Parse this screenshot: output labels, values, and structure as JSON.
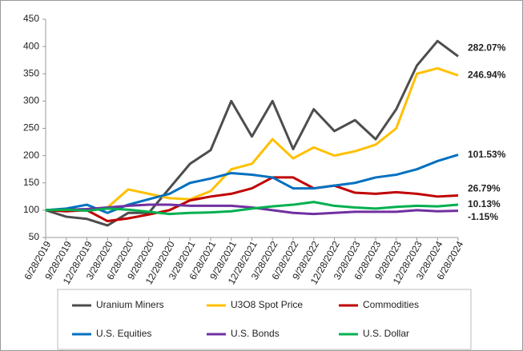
{
  "chart_data": {
    "type": "line",
    "categories": [
      "6/28/2019",
      "9/28/2019",
      "12/28/2019",
      "3/28/2020",
      "6/28/2020",
      "9/28/2020",
      "12/28/2020",
      "3/28/2021",
      "6/28/2021",
      "9/28/2021",
      "12/28/2021",
      "3/28/2022",
      "6/28/2022",
      "9/28/2022",
      "12/28/2022",
      "3/28/2023",
      "6/28/2023",
      "9/28/2023",
      "12/28/2023",
      "3/28/2024",
      "6/28/2024"
    ],
    "ylim": [
      50,
      450
    ],
    "yticks": [
      50,
      100,
      150,
      200,
      250,
      300,
      350,
      400,
      450
    ],
    "series": [
      {
        "name": "Uranium Miners",
        "color": "#4d4d4d",
        "end_label": "282.07%",
        "values": [
          100,
          88,
          84,
          72,
          95,
          95,
          140,
          185,
          210,
          300,
          235,
          300,
          212,
          285,
          245,
          265,
          230,
          285,
          365,
          410,
          382
        ]
      },
      {
        "name": "U3O8 Spot Price",
        "color": "#ffc000",
        "end_label": "246.94%",
        "values": [
          100,
          102,
          100,
          105,
          138,
          130,
          122,
          120,
          135,
          175,
          185,
          230,
          195,
          215,
          200,
          208,
          220,
          250,
          350,
          360,
          347
        ]
      },
      {
        "name": "Commodities",
        "color": "#c00000",
        "end_label": "26.79%",
        "values": [
          100,
          98,
          100,
          80,
          85,
          92,
          100,
          118,
          125,
          130,
          140,
          160,
          160,
          140,
          145,
          132,
          130,
          133,
          130,
          125,
          127
        ]
      },
      {
        "name": "U.S. Equities",
        "color": "#0070c0",
        "end_label": "101.53%",
        "values": [
          100,
          103,
          110,
          95,
          110,
          120,
          130,
          150,
          158,
          168,
          165,
          160,
          140,
          140,
          145,
          150,
          160,
          165,
          175,
          190,
          201.5
        ]
      },
      {
        "name": "U.S. Bonds",
        "color": "#7030a0",
        "end_label": "-1.15%",
        "values": [
          100,
          101,
          102,
          105,
          108,
          110,
          110,
          108,
          108,
          108,
          105,
          100,
          95,
          93,
          95,
          97,
          97,
          97,
          100,
          98,
          98.85
        ]
      },
      {
        "name": "U.S. Dollar",
        "color": "#00b050",
        "end_label": "10.13%",
        "values": [
          100,
          101,
          99,
          103,
          101,
          97,
          93,
          95,
          96,
          98,
          103,
          107,
          110,
          115,
          108,
          105,
          103,
          106,
          108,
          107,
          110.13
        ]
      }
    ]
  }
}
